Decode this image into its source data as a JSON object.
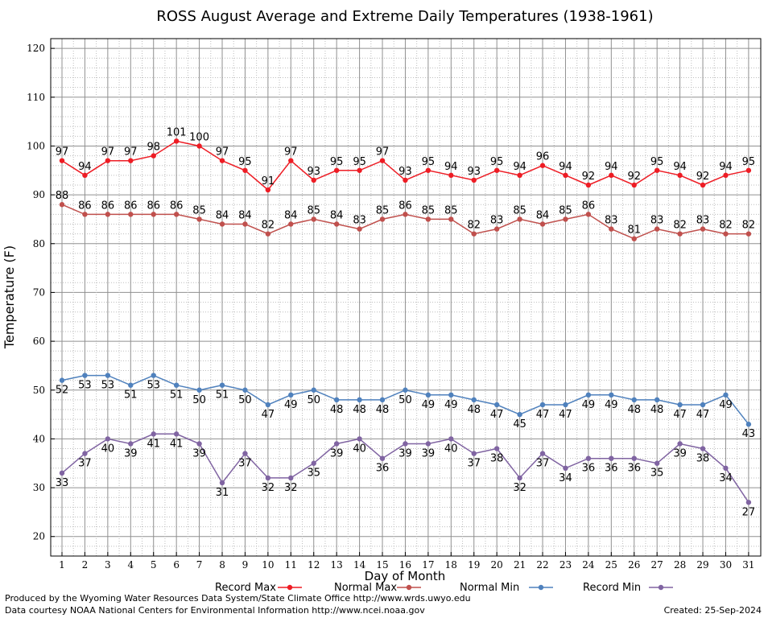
{
  "chart_data": {
    "type": "line",
    "title": "ROSS August Average and Extreme Daily Temperatures (1938-1961)",
    "xlabel": "Day of Month",
    "ylabel": "Temperature (F)",
    "ylim": [
      16,
      122
    ],
    "yticks": [
      20,
      30,
      40,
      50,
      60,
      70,
      80,
      90,
      100,
      110,
      120
    ],
    "x": [
      1,
      2,
      3,
      4,
      5,
      6,
      7,
      8,
      9,
      10,
      11,
      12,
      13,
      14,
      15,
      16,
      17,
      18,
      19,
      20,
      21,
      22,
      23,
      24,
      25,
      26,
      27,
      28,
      29,
      30,
      31
    ],
    "grid": true,
    "legend_position": "bottom",
    "series": [
      {
        "name": "Record Max",
        "color": "#ee1c24",
        "values": [
          97,
          94,
          97,
          97,
          98,
          101,
          100,
          97,
          95,
          91,
          97,
          93,
          95,
          95,
          97,
          93,
          95,
          94,
          93,
          95,
          94,
          96,
          94,
          92,
          94,
          92,
          95,
          94,
          92,
          94,
          95
        ]
      },
      {
        "name": "Normal Max",
        "color": "#c0504d",
        "values": [
          88,
          86,
          86,
          86,
          86,
          86,
          85,
          84,
          84,
          82,
          84,
          85,
          84,
          83,
          85,
          86,
          85,
          85,
          82,
          83,
          85,
          84,
          85,
          86,
          83,
          81,
          83,
          82,
          83,
          82,
          82
        ]
      },
      {
        "name": "Normal Min",
        "color": "#4f81bd",
        "values": [
          52,
          53,
          53,
          51,
          53,
          51,
          50,
          51,
          50,
          47,
          49,
          50,
          48,
          48,
          48,
          50,
          49,
          49,
          48,
          47,
          45,
          47,
          47,
          49,
          49,
          48,
          48,
          47,
          47,
          49,
          43
        ]
      },
      {
        "name": "Record Min",
        "color": "#8064a2",
        "values": [
          33,
          37,
          40,
          39,
          41,
          41,
          39,
          31,
          37,
          32,
          32,
          35,
          39,
          40,
          36,
          39,
          39,
          40,
          37,
          38,
          32,
          37,
          34,
          36,
          36,
          36,
          35,
          39,
          38,
          34,
          27
        ]
      }
    ]
  },
  "footer": {
    "produced": "Produced by the Wyoming Water Resources Data System/State Climate Office http://www.wrds.uwyo.edu",
    "courtesy": "Data courtesy NOAA National Centers for Environmental Information http://www.ncei.noaa.gov",
    "created": "Created: 25-Sep-2024"
  }
}
